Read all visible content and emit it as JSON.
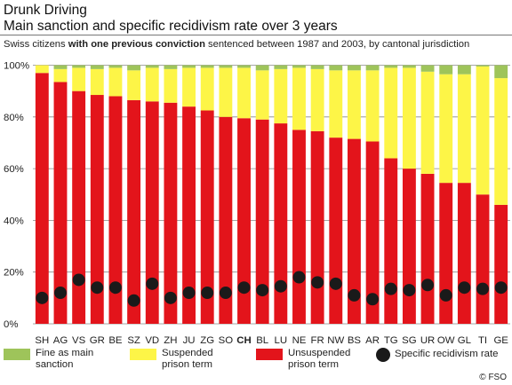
{
  "header": {
    "title_line1": "Drunk Driving",
    "title_line2": "Main sanction and specific recidivism rate over 3 years",
    "subtitle_pre": "Swiss citizens ",
    "subtitle_bold": "with one previous conviction",
    "subtitle_post": " sentenced between 1987 and 2003, by cantonal jurisdiction"
  },
  "legend": {
    "fine_label": "Fine as main sanction",
    "suspended_label": "Suspended prison term",
    "unsuspended_label": "Unsuspended prison term",
    "recidivism_label": "Specific recidivism rate"
  },
  "footer": {
    "source": "© FSO"
  },
  "colors": {
    "fine": "#9ec45a",
    "suspended": "#fdf547",
    "unsuspended": "#e3141b",
    "recidivism": "#1a1a1a",
    "grid": "#888888"
  },
  "chart_data": {
    "type": "bar",
    "stacked": true,
    "categories": [
      "SH",
      "AG",
      "VS",
      "GR",
      "BE",
      "SZ",
      "VD",
      "ZH",
      "JU",
      "ZG",
      "SO",
      "CH",
      "BL",
      "LU",
      "NE",
      "FR",
      "NW",
      "BS",
      "AR",
      "TG",
      "SG",
      "UR",
      "OW",
      "GL",
      "TI",
      "GE"
    ],
    "bold_category": "CH",
    "series": [
      {
        "name": "Unsuspended prison term",
        "values": [
          97,
          93.5,
          90,
          88.5,
          88,
          86.5,
          86,
          85.5,
          84,
          82.5,
          80,
          79.5,
          79,
          77.5,
          75,
          74.5,
          72,
          71.5,
          70.5,
          64,
          60,
          58,
          54.5,
          54.5,
          50,
          46
        ]
      },
      {
        "name": "Suspended prison term",
        "values": [
          3,
          5,
          9,
          10,
          11,
          11.5,
          13,
          13,
          15,
          16.5,
          19,
          19.5,
          19,
          21,
          24,
          24,
          26,
          26.5,
          27.5,
          35,
          39,
          39.5,
          42,
          42,
          49.5,
          49
        ]
      },
      {
        "name": "Fine as main sanction",
        "values": [
          0,
          1.5,
          1,
          1.5,
          1,
          2,
          1,
          1.5,
          1,
          1,
          1,
          1,
          2,
          1.5,
          1,
          1.5,
          2,
          2,
          2,
          1,
          1,
          2.5,
          3.5,
          3.5,
          0.5,
          5
        ]
      }
    ],
    "recidivism": {
      "name": "Specific recidivism rate",
      "values": [
        10,
        12,
        17,
        14,
        14,
        9,
        15.5,
        10,
        12,
        12,
        12,
        14,
        13,
        14.5,
        18,
        16,
        15.5,
        11,
        9.5,
        13.5,
        13,
        15,
        11,
        14,
        13.5,
        14
      ]
    },
    "ylim": [
      0,
      100
    ],
    "yticks": [
      0,
      20,
      40,
      60,
      80,
      100
    ],
    "ytick_labels": [
      "0%",
      "20%",
      "40%",
      "60%",
      "80%",
      "100%"
    ],
    "grid": true,
    "xlabel": "",
    "ylabel": ""
  }
}
